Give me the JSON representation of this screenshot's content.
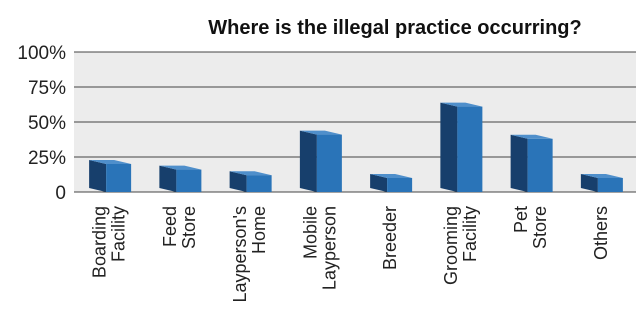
{
  "chart_data": {
    "type": "bar",
    "title": "Where is the illegal practice occurring?",
    "xlabel": "",
    "ylabel": "",
    "ylim": [
      0,
      100
    ],
    "yticks": [
      "100%",
      "75%",
      "50%",
      "25%",
      "0"
    ],
    "ytick_values": [
      100,
      75,
      50,
      25,
      0
    ],
    "categories": [
      [
        "Boarding",
        "Facility"
      ],
      [
        "Feed",
        "Store"
      ],
      [
        "Layperson's",
        "Home"
      ],
      [
        "Mobile",
        "Layperson"
      ],
      [
        "Breeder"
      ],
      [
        "Grooming",
        "Facility"
      ],
      [
        "Pet",
        "Store"
      ],
      [
        "Others"
      ]
    ],
    "values": [
      20,
      16,
      12,
      41,
      10,
      61,
      38,
      10
    ],
    "grid": true,
    "legend": "none",
    "colors": {
      "bar_front": "#2a74b8",
      "bar_side": "#173f6c",
      "bar_top": "#4f8fcb",
      "plot_bg": "#ececec",
      "grid": "#444444"
    }
  }
}
